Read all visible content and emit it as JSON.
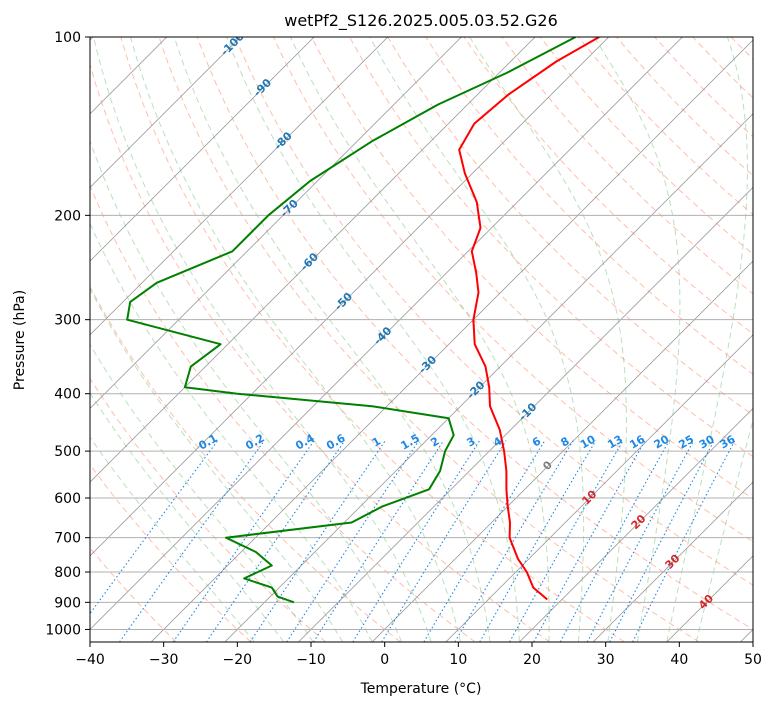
{
  "chart_data": {
    "type": "line",
    "chart_kind": "skew-t log-p",
    "title": "wetPf2_S126.2025.005.03.52.G26",
    "xlabel": "Temperature (°C)",
    "ylabel": "Pressure (hPa)",
    "xlim": [
      -40,
      50
    ],
    "ylim": [
      1050,
      100
    ],
    "y_scale": "log",
    "grid": true,
    "x_ticks": [
      -40,
      -30,
      -20,
      -10,
      0,
      10,
      20,
      30,
      40,
      50
    ],
    "y_ticks": [
      100,
      200,
      300,
      400,
      500,
      600,
      700,
      800,
      900,
      1000
    ],
    "isotherm_labels": [
      "-100",
      "-90",
      "-80",
      "-70",
      "-60",
      "-50",
      "-40",
      "-30",
      "-20",
      "-10",
      "0",
      "10",
      "20",
      "30",
      "40"
    ],
    "mixing_ratio_labels": [
      "0.1",
      "0.2",
      "0.4",
      "0.6",
      "1",
      "1.5",
      "2",
      "3",
      "4",
      "6",
      "8",
      "10",
      "13",
      "16",
      "20",
      "25",
      "30",
      "36"
    ],
    "colors": {
      "temperature": "#ff0000",
      "dewpoint": "#008000",
      "isotherm_cold": "#1f77b4",
      "isotherm_zero": "#808080",
      "isotherm_warm": "#d62728",
      "mixing_ratio": "#1e88e5",
      "dry_adiabat": "#ff8a65",
      "moist_adiabat": "#66bb6a",
      "isobar_grid": "#b0b0b0"
    },
    "series": [
      {
        "name": "",
        "color": "#ff0000",
        "points": [
          {
            "p": 100,
            "t": -51.3
          },
          {
            "p": 110,
            "t": -53.8
          },
          {
            "p": 125,
            "t": -55.8
          },
          {
            "p": 140,
            "t": -56.5
          },
          {
            "p": 155,
            "t": -55.0
          },
          {
            "p": 170,
            "t": -51.0
          },
          {
            "p": 190,
            "t": -45.5
          },
          {
            "p": 210,
            "t": -41.5
          },
          {
            "p": 230,
            "t": -39.5
          },
          {
            "p": 250,
            "t": -36.0
          },
          {
            "p": 270,
            "t": -33.0
          },
          {
            "p": 300,
            "t": -30.0
          },
          {
            "p": 330,
            "t": -26.5
          },
          {
            "p": 360,
            "t": -22.0
          },
          {
            "p": 390,
            "t": -18.7
          },
          {
            "p": 420,
            "t": -16.0
          },
          {
            "p": 460,
            "t": -11.5
          },
          {
            "p": 500,
            "t": -8.0
          },
          {
            "p": 540,
            "t": -5.0
          },
          {
            "p": 580,
            "t": -2.5
          },
          {
            "p": 620,
            "t": 0.0
          },
          {
            "p": 660,
            "t": 2.5
          },
          {
            "p": 700,
            "t": 4.5
          },
          {
            "p": 760,
            "t": 8.5
          },
          {
            "p": 800,
            "t": 11.5
          },
          {
            "p": 850,
            "t": 14.5
          },
          {
            "p": 890,
            "t": 18.0
          }
        ]
      },
      {
        "name": "",
        "color": "#008000",
        "points": [
          {
            "p": 100,
            "t": -54.5
          },
          {
            "p": 115,
            "t": -59.0
          },
          {
            "p": 130,
            "t": -64.0
          },
          {
            "p": 150,
            "t": -68.0
          },
          {
            "p": 175,
            "t": -71.0
          },
          {
            "p": 200,
            "t": -72.0
          },
          {
            "p": 230,
            "t": -72.0
          },
          {
            "p": 260,
            "t": -78.0
          },
          {
            "p": 280,
            "t": -79.0
          },
          {
            "p": 300,
            "t": -77.0
          },
          {
            "p": 330,
            "t": -61.0
          },
          {
            "p": 360,
            "t": -62.0
          },
          {
            "p": 390,
            "t": -60.0
          },
          {
            "p": 400,
            "t": -52.0
          },
          {
            "p": 420,
            "t": -32.0
          },
          {
            "p": 440,
            "t": -20.0
          },
          {
            "p": 470,
            "t": -17.0
          },
          {
            "p": 500,
            "t": -16.0
          },
          {
            "p": 540,
            "t": -14.0
          },
          {
            "p": 580,
            "t": -13.0
          },
          {
            "p": 620,
            "t": -17.0
          },
          {
            "p": 660,
            "t": -19.0
          },
          {
            "p": 700,
            "t": -34.0
          },
          {
            "p": 740,
            "t": -28.0
          },
          {
            "p": 780,
            "t": -24.0
          },
          {
            "p": 820,
            "t": -26.0
          },
          {
            "p": 850,
            "t": -21.0
          },
          {
            "p": 880,
            "t": -19.0
          },
          {
            "p": 900,
            "t": -16.0
          }
        ]
      }
    ]
  }
}
